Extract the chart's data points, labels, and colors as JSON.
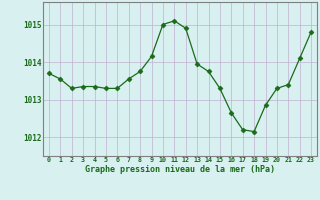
{
  "x": [
    0,
    1,
    2,
    3,
    4,
    5,
    6,
    7,
    8,
    9,
    10,
    11,
    12,
    13,
    14,
    15,
    16,
    17,
    18,
    19,
    20,
    21,
    22,
    23
  ],
  "y": [
    1013.7,
    1013.55,
    1013.3,
    1013.35,
    1013.35,
    1013.3,
    1013.3,
    1013.55,
    1013.75,
    1014.15,
    1015.0,
    1015.1,
    1014.9,
    1013.95,
    1013.75,
    1013.3,
    1012.65,
    1012.2,
    1012.15,
    1012.85,
    1013.3,
    1013.4,
    1014.1,
    1014.8
  ],
  "line_color": "#1a6b1a",
  "marker": "D",
  "marker_size": 2.5,
  "bg_color": "#d8f0f0",
  "grid_color": "#c0b0d0",
  "xlabel": "Graphe pression niveau de la mer (hPa)",
  "xlabel_color": "#1a6b1a",
  "tick_label_color": "#1a6b1a",
  "ylim": [
    1011.5,
    1015.6
  ],
  "yticks": [
    1012,
    1013,
    1014,
    1015
  ],
  "xticks": [
    0,
    1,
    2,
    3,
    4,
    5,
    6,
    7,
    8,
    9,
    10,
    11,
    12,
    13,
    14,
    15,
    16,
    17,
    18,
    19,
    20,
    21,
    22,
    23
  ],
  "spine_color": "#808080"
}
